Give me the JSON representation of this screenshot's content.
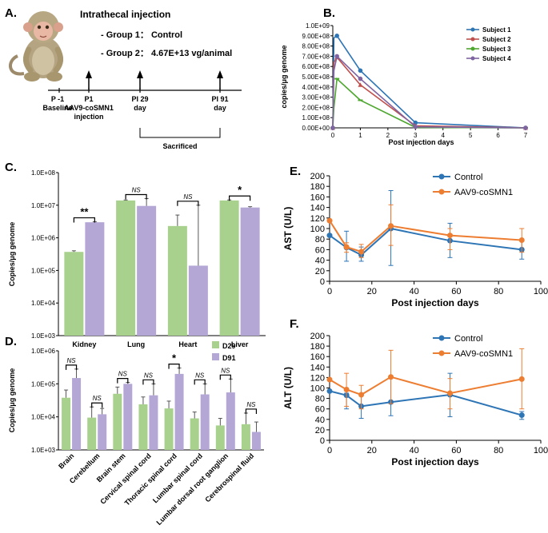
{
  "panelA": {
    "label": "A.",
    "title": "Intrathecal injection",
    "group1": "- Group 1： Control",
    "group2": "- Group 2： 4.67E+13 vg/animal",
    "timeline": [
      {
        "lines": [
          "P -1",
          "Baseline"
        ]
      },
      {
        "lines": [
          "P1",
          "AAV9-coSMN1",
          "injection"
        ]
      },
      {
        "lines": [
          "PI 29",
          "day"
        ]
      },
      {
        "lines": [
          "PI 91",
          "day"
        ]
      }
    ],
    "sacrificed": "Sacrificed"
  },
  "chart_data": [
    {
      "id": "B",
      "panel": "B.",
      "type": "line",
      "ylabel": "copies/μg genome",
      "xlabel": "Post injection days",
      "x_ticks": [
        "0",
        "1",
        "2",
        "3",
        "4",
        "5",
        "6",
        "7"
      ],
      "y_ticks": [
        "0.00E+00",
        "1.00E+08",
        "2.00E+08",
        "3.00E+08",
        "4.00E+08",
        "5.00E+08",
        "6.00E+08",
        "7.00E+08",
        "8.00E+08",
        "9.00E+08",
        "1.0E+09"
      ],
      "ylim": [
        0,
        1000000000
      ],
      "xlim": [
        0,
        7
      ],
      "series": [
        {
          "name": "Subject 1",
          "color": "#2e75b6",
          "x": [
            0,
            0.04,
            0.15,
            1,
            3,
            7
          ],
          "y": [
            0,
            880000000,
            900000000,
            560000000,
            50000000,
            0
          ]
        },
        {
          "name": "Subject 2",
          "color": "#c0504d",
          "x": [
            0,
            0.04,
            0.15,
            1,
            3,
            7
          ],
          "y": [
            0,
            640000000,
            690000000,
            420000000,
            20000000,
            0
          ]
        },
        {
          "name": "Subject 3",
          "color": "#4ea72e",
          "x": [
            0,
            0.04,
            0.15,
            1,
            3,
            7
          ],
          "y": [
            0,
            200000000,
            480000000,
            270000000,
            5000000,
            0
          ]
        },
        {
          "name": "Subject 4",
          "color": "#8064a2",
          "x": [
            0,
            0.04,
            0.15,
            1,
            3,
            7
          ],
          "y": [
            0,
            560000000,
            700000000,
            480000000,
            10000000,
            0
          ]
        }
      ]
    },
    {
      "id": "C",
      "panel": "C.",
      "type": "bar",
      "scale": "log",
      "ylabel": "Copies/μg genome",
      "y_ticks": [
        "1.0E+03",
        "1.0E+04",
        "1.0E+05",
        "1.0E+06",
        "1.0E+07",
        "1.0E+08"
      ],
      "ylim": [
        1000,
        100000000
      ],
      "categories": [
        "Kidney",
        "Lung",
        "Heart",
        "Liver"
      ],
      "series": [
        {
          "name": "D29",
          "color": "#a9d18e",
          "values": [
            370000,
            14000000,
            2300000,
            14000000
          ],
          "err_hi": [
            400000,
            14500000,
            5000000,
            14500000
          ]
        },
        {
          "name": "D91",
          "color": "#b4a7d6",
          "values": [
            3000000,
            9500000,
            140000,
            8500000
          ],
          "err_hi": [
            3100000,
            16000000,
            10000000,
            9000000
          ]
        }
      ],
      "significance": [
        "**",
        "NS",
        "NS",
        "*"
      ]
    },
    {
      "id": "D",
      "panel": "D.",
      "type": "bar",
      "scale": "log",
      "ylabel": "Copies/μg genome",
      "y_ticks": [
        "1.0E+03",
        "1.0E+04",
        "1.0E+05",
        "1.0E+06"
      ],
      "ylim": [
        1000,
        1000000
      ],
      "categories": [
        "Brain",
        "Cerebellum",
        "Brain stem",
        "Cervical spinal cord",
        "Thoracic spinal cord",
        "Lumbar spinal cord",
        "Lumbar dorsal root ganglion",
        "Cerebrospinal fluid"
      ],
      "series": [
        {
          "name": "D29",
          "color": "#a9d18e",
          "values": [
            38000,
            9500,
            50000,
            24000,
            18000,
            9000,
            5500,
            6000
          ],
          "err_hi": [
            65000,
            20000,
            80000,
            40000,
            30000,
            14000,
            9000,
            13000
          ]
        },
        {
          "name": "D91",
          "color": "#b4a7d6",
          "values": [
            150000,
            12000,
            100000,
            45000,
            200000,
            48000,
            55000,
            3500
          ],
          "err_hi": [
            280000,
            18000,
            110000,
            100000,
            300000,
            100000,
            140000,
            7000
          ]
        }
      ],
      "significance": [
        "NS",
        "NS",
        "NS",
        "NS",
        "*",
        "NS",
        "NS",
        "NS"
      ]
    },
    {
      "id": "E",
      "panel": "E.",
      "type": "line",
      "ylabel": "AST (U/L)",
      "xlabel": "Post injection days",
      "x_ticks": [
        "0",
        "20",
        "40",
        "60",
        "80",
        "100"
      ],
      "y_ticks": [
        "0",
        "20",
        "40",
        "60",
        "80",
        "100",
        "120",
        "140",
        "160",
        "180",
        "200"
      ],
      "xlim": [
        0,
        100
      ],
      "ylim": [
        0,
        200
      ],
      "series": [
        {
          "name": "Control",
          "color": "#2e75b6",
          "x": [
            0,
            8,
            15,
            29,
            57,
            91
          ],
          "y": [
            87,
            64,
            50,
            100,
            77,
            60
          ],
          "err_lo": [
            0,
            38,
            38,
            30,
            45,
            42
          ],
          "err_hi": [
            0,
            95,
            65,
            172,
            110,
            78
          ]
        },
        {
          "name": "AAV9-coSMN1",
          "color": "#ed7d31",
          "x": [
            0,
            8,
            15,
            29,
            57,
            91
          ],
          "y": [
            115,
            65,
            56,
            105,
            87,
            78
          ],
          "err_lo": [
            0,
            55,
            45,
            68,
            60,
            55
          ],
          "err_hi": [
            0,
            73,
            70,
            145,
            100,
            100
          ]
        }
      ]
    },
    {
      "id": "F",
      "panel": "F.",
      "type": "line",
      "ylabel": "ALT (U/L)",
      "xlabel": "Post injection days",
      "x_ticks": [
        "0",
        "20",
        "40",
        "60",
        "80",
        "100"
      ],
      "y_ticks": [
        "0",
        "20",
        "40",
        "60",
        "80",
        "100",
        "120",
        "140",
        "160",
        "180",
        "200"
      ],
      "xlim": [
        0,
        100
      ],
      "ylim": [
        0,
        200
      ],
      "series": [
        {
          "name": "Control",
          "color": "#2e75b6",
          "x": [
            0,
            8,
            15,
            29,
            57,
            91
          ],
          "y": [
            94,
            86,
            65,
            73,
            87,
            48
          ],
          "err_lo": [
            0,
            60,
            42,
            47,
            45,
            40
          ],
          "err_hi": [
            0,
            90,
            88,
            120,
            128,
            55
          ]
        },
        {
          "name": "AAV9-coSMN1",
          "color": "#ed7d31",
          "x": [
            0,
            8,
            15,
            29,
            57,
            91
          ],
          "y": [
            116,
            97,
            87,
            121,
            90,
            117
          ],
          "err_lo": [
            0,
            65,
            60,
            70,
            60,
            60
          ],
          "err_hi": [
            0,
            128,
            105,
            172,
            118,
            175
          ]
        }
      ]
    }
  ]
}
